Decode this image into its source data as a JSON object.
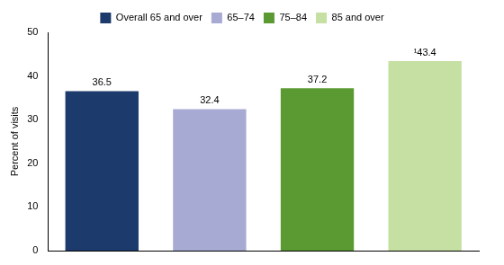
{
  "chart_data": {
    "type": "bar",
    "y_label": "Percent of visits",
    "categories": [
      "Overall 65 and over",
      "65–74",
      "75–84",
      "85 and over"
    ],
    "values": [
      36.5,
      32.4,
      37.2,
      43.4
    ],
    "value_labels": [
      "36.5",
      "32.4",
      "37.2",
      "¹43.4"
    ],
    "colors": [
      "#1c3a6b",
      "#a7abd3",
      "#5b9a32",
      "#c6e0a4"
    ],
    "ylim": [
      0,
      50
    ],
    "yticks": [
      0,
      10,
      20,
      30,
      40,
      50
    ],
    "grid": false,
    "legend": "top",
    "data_labels": true,
    "tick_labels": "y"
  }
}
